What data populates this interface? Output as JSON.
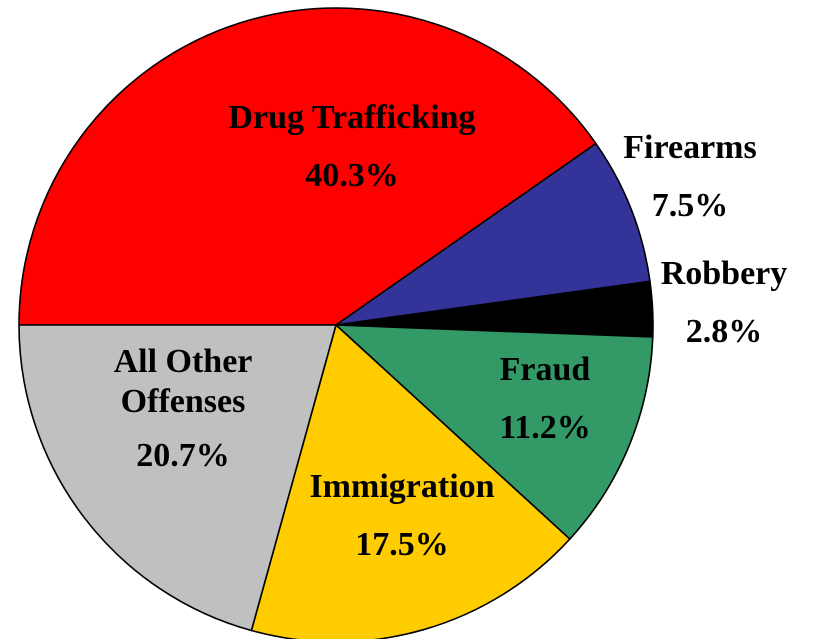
{
  "chart_data": {
    "type": "pie",
    "title": "",
    "slices": [
      {
        "name": "Drug Trafficking",
        "value": 40.3,
        "value_label": "40.3%",
        "color": "#ff0000"
      },
      {
        "name": "Firearms",
        "value": 7.5,
        "value_label": "7.5%",
        "color": "#333399"
      },
      {
        "name": "Robbery",
        "value": 2.8,
        "value_label": "2.8%",
        "color": "#000000"
      },
      {
        "name": "Fraud",
        "value": 11.2,
        "value_label": "11.2%",
        "color": "#339966"
      },
      {
        "name": "Immigration",
        "value": 17.5,
        "value_label": "17.5%",
        "color": "#ffcc00"
      },
      {
        "name": "All Other Offenses",
        "value": 20.7,
        "value_label": "20.7%",
        "color": "#c0c0c0"
      }
    ],
    "start": "9 o'clock",
    "direction": "clockwise",
    "legend": "none"
  }
}
